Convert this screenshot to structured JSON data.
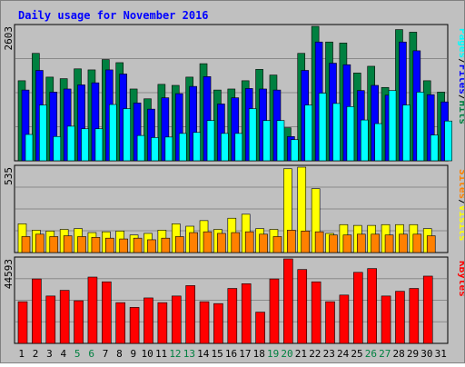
{
  "title": "Daily usage for November 2016",
  "colors": {
    "title": "#0000ff",
    "background": "#c0c0c0",
    "plot_bg": "#c0c0c0",
    "grid": "#8a8a8a",
    "weekday_label": "#000000",
    "weekend_label": "#008040",
    "hits": "#008040",
    "files": "#0000ff",
    "pages": "#00ffff",
    "visits": "#ffff00",
    "sites": "#ff8000",
    "kbytes": "#ff0000"
  },
  "chart_data": [
    {
      "type": "bar",
      "panel": "hits-files-pages",
      "ymax_label": "2603",
      "ylim": [
        0,
        2603
      ],
      "grid": true,
      "legend_placement": "right, vertical",
      "categories": [
        "1",
        "2",
        "3",
        "4",
        "5",
        "6",
        "7",
        "8",
        "9",
        "10",
        "11",
        "12",
        "13",
        "14",
        "15",
        "16",
        "17",
        "18",
        "19",
        "20",
        "21",
        "22",
        "23",
        "24",
        "25",
        "26",
        "27",
        "28",
        "29",
        "30",
        "31"
      ],
      "weekend_days": [
        "5",
        "6",
        "12",
        "13",
        "19",
        "20",
        "26",
        "27"
      ],
      "legend": [
        {
          "name": "Pages",
          "color": "#00ffff"
        },
        {
          "name": "/",
          "color": "#000000"
        },
        {
          "name": "Files",
          "color": "#0000ff"
        },
        {
          "name": "/",
          "color": "#000000"
        },
        {
          "name": "Hits",
          "color": "#008040"
        }
      ],
      "series": [
        {
          "name": "Hits",
          "values": [
            1550,
            2080,
            1620,
            1590,
            1780,
            1760,
            1960,
            1900,
            1390,
            1200,
            1480,
            1460,
            1620,
            1880,
            1370,
            1390,
            1550,
            1770,
            1660,
            640,
            2080,
            2603,
            2300,
            2280,
            1700,
            1830,
            1420,
            2540,
            2490,
            1550,
            1330
          ]
        },
        {
          "name": "Files",
          "values": [
            1370,
            1750,
            1330,
            1390,
            1470,
            1510,
            1760,
            1680,
            1120,
            1000,
            1220,
            1300,
            1440,
            1630,
            1100,
            1220,
            1400,
            1390,
            1370,
            470,
            1750,
            2300,
            1890,
            1860,
            1360,
            1460,
            1270,
            2300,
            2130,
            1280,
            1140
          ]
        },
        {
          "name": "Pages",
          "values": [
            510,
            1080,
            470,
            670,
            620,
            620,
            1090,
            1010,
            490,
            450,
            460,
            530,
            550,
            780,
            530,
            530,
            1010,
            780,
            780,
            410,
            1080,
            1310,
            1110,
            1050,
            790,
            720,
            1360,
            1080,
            1330,
            500,
            770
          ]
        }
      ]
    },
    {
      "type": "bar",
      "panel": "visits-sites",
      "ymax_label": "535",
      "ylim": [
        0,
        535
      ],
      "grid": true,
      "legend_placement": "right, vertical",
      "categories": [
        "1",
        "2",
        "3",
        "4",
        "5",
        "6",
        "7",
        "8",
        "9",
        "10",
        "11",
        "12",
        "13",
        "14",
        "15",
        "16",
        "17",
        "18",
        "19",
        "20",
        "21",
        "22",
        "23",
        "24",
        "25",
        "26",
        "27",
        "28",
        "29",
        "30",
        "31"
      ],
      "legend": [
        {
          "name": "Sites",
          "color": "#ff8000"
        },
        {
          "name": "/",
          "color": "#000000"
        },
        {
          "name": "Visits",
          "color": "#ffff00"
        }
      ],
      "series": [
        {
          "name": "Visits",
          "values": [
            180,
            140,
            135,
            145,
            150,
            125,
            130,
            135,
            110,
            120,
            140,
            180,
            165,
            200,
            145,
            215,
            240,
            150,
            145,
            525,
            535,
            400,
            120,
            175,
            170,
            170,
            175,
            175,
            175,
            150,
            0
          ]
        },
        {
          "name": "Sites",
          "values": [
            100,
            115,
            100,
            105,
            100,
            95,
            90,
            85,
            90,
            80,
            90,
            100,
            125,
            130,
            120,
            125,
            130,
            115,
            100,
            140,
            135,
            130,
            110,
            110,
            115,
            115,
            110,
            115,
            115,
            105,
            0
          ]
        }
      ]
    },
    {
      "type": "bar",
      "panel": "kbytes",
      "ymax_label": "44593",
      "ylim": [
        0,
        44593
      ],
      "grid": true,
      "legend_placement": "right, vertical",
      "categories": [
        "1",
        "2",
        "3",
        "4",
        "5",
        "6",
        "7",
        "8",
        "9",
        "10",
        "11",
        "12",
        "13",
        "14",
        "15",
        "16",
        "17",
        "18",
        "19",
        "20",
        "21",
        "22",
        "23",
        "24",
        "25",
        "26",
        "27",
        "28",
        "29",
        "30",
        "31"
      ],
      "legend": [
        {
          "name": "KBytes",
          "color": "#ff0000"
        }
      ],
      "series": [
        {
          "name": "KBytes",
          "values": [
            22000,
            34000,
            25000,
            28000,
            22500,
            35000,
            32500,
            21500,
            19000,
            24000,
            21500,
            25000,
            30500,
            22000,
            21000,
            29000,
            31500,
            16500,
            34000,
            44593,
            39000,
            32500,
            22000,
            25500,
            37500,
            39500,
            25000,
            27500,
            29000,
            35500,
            0
          ]
        }
      ]
    }
  ],
  "x_axis_labels": [
    "1",
    "2",
    "3",
    "4",
    "5",
    "6",
    "7",
    "8",
    "9",
    "10",
    "11",
    "12",
    "13",
    "14",
    "15",
    "16",
    "17",
    "18",
    "19",
    "20",
    "21",
    "22",
    "23",
    "24",
    "25",
    "26",
    "27",
    "28",
    "29",
    "30",
    "31"
  ]
}
